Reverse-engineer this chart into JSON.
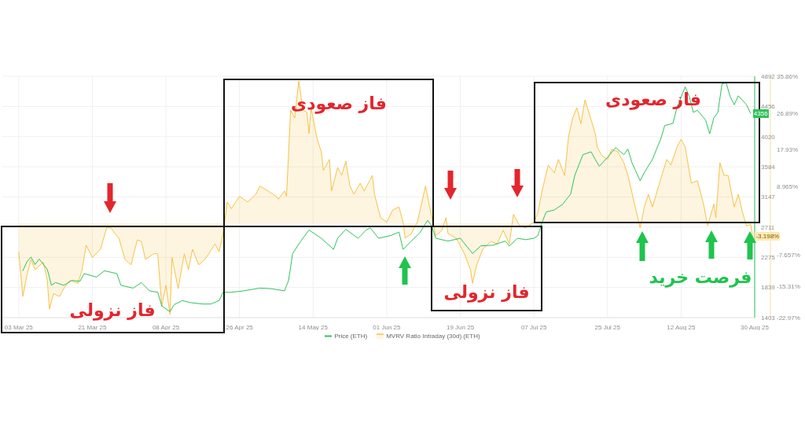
{
  "chart_data": {
    "type": "line",
    "series": [
      {
        "name": "Price (ETH)",
        "color": "#2fc25b",
        "x": [
          "2025-03-04",
          "2025-03-05",
          "2025-03-06",
          "2025-03-07",
          "2025-03-08",
          "2025-03-10",
          "2025-03-11",
          "2025-03-12",
          "2025-03-14",
          "2025-03-16",
          "2025-03-18",
          "2025-03-19",
          "2025-03-22",
          "2025-03-24",
          "2025-03-27",
          "2025-03-28",
          "2025-03-31",
          "2025-04-02",
          "2025-04-04",
          "2025-04-06",
          "2025-04-07",
          "2025-04-09",
          "2025-04-10",
          "2025-04-12",
          "2025-04-14",
          "2025-04-17",
          "2025-04-19",
          "2025-04-21",
          "2025-04-22",
          "2025-04-24",
          "2025-04-27",
          "2025-05-01",
          "2025-05-04",
          "2025-05-07",
          "2025-05-08",
          "2025-05-09",
          "2025-05-11",
          "2025-05-13",
          "2025-05-16",
          "2025-05-19",
          "2025-05-20",
          "2025-05-22",
          "2025-05-25",
          "2025-05-27",
          "2025-05-28",
          "2025-05-30",
          "2025-06-02",
          "2025-06-04",
          "2025-06-05",
          "2025-06-07",
          "2025-06-09",
          "2025-06-11",
          "2025-06-12",
          "2025-06-13",
          "2025-06-16",
          "2025-06-19",
          "2025-06-22",
          "2025-06-24",
          "2025-06-27",
          "2025-06-30",
          "2025-07-01",
          "2025-07-03",
          "2025-07-05",
          "2025-07-07",
          "2025-07-08",
          "2025-07-09",
          "2025-07-10",
          "2025-07-12",
          "2025-07-14",
          "2025-07-16",
          "2025-07-17",
          "2025-07-18",
          "2025-07-19",
          "2025-07-21",
          "2025-07-22",
          "2025-07-23",
          "2025-07-25",
          "2025-07-27",
          "2025-07-29",
          "2025-07-30",
          "2025-07-31",
          "2025-08-02",
          "2025-08-03",
          "2025-08-05",
          "2025-08-06",
          "2025-08-07",
          "2025-08-08",
          "2025-08-10",
          "2025-08-11",
          "2025-08-13",
          "2025-08-14",
          "2025-08-15",
          "2025-08-16",
          "2025-08-18",
          "2025-08-19",
          "2025-08-20",
          "2025-08-21",
          "2025-08-22",
          "2025-08-23",
          "2025-08-24",
          "2025-08-25",
          "2025-08-26",
          "2025-08-28",
          "2025-08-29"
        ],
        "values": [
          2080,
          2210,
          2280,
          2170,
          2250,
          2100,
          1870,
          1910,
          1870,
          1940,
          1930,
          2040,
          1990,
          2080,
          2040,
          1870,
          1830,
          1910,
          1790,
          1770,
          1570,
          1490,
          1590,
          1650,
          1620,
          1600,
          1600,
          1650,
          1770,
          1770,
          1790,
          1830,
          1820,
          1790,
          1940,
          2330,
          2510,
          2670,
          2550,
          2390,
          2550,
          2680,
          2550,
          2670,
          2700,
          2550,
          2590,
          2640,
          2390,
          2510,
          2620,
          2810,
          2730,
          2550,
          2510,
          2550,
          2330,
          2440,
          2450,
          2510,
          2440,
          2550,
          2530,
          2550,
          2590,
          2780,
          2930,
          2960,
          3040,
          3190,
          3460,
          3610,
          3760,
          3800,
          3690,
          3590,
          3720,
          3860,
          3760,
          3840,
          3640,
          3380,
          3500,
          3690,
          3840,
          3980,
          4180,
          4210,
          4440,
          4740,
          4600,
          4370,
          4400,
          4260,
          4060,
          4290,
          4370,
          4780,
          4800,
          4600,
          4480,
          4610,
          4480,
          4356
        ],
        "value_labels": [
          null,
          null,
          null,
          null,
          null,
          null,
          null,
          null,
          null,
          null,
          null,
          null,
          null,
          null,
          null,
          null,
          null,
          null,
          null,
          null,
          null,
          null,
          null,
          null,
          null,
          null,
          null,
          null,
          null,
          null,
          null,
          null,
          null,
          null,
          null,
          null,
          null,
          null,
          null,
          null,
          null,
          null,
          null,
          null,
          null,
          null,
          null,
          null,
          null,
          null,
          null,
          null,
          null,
          null,
          null,
          null,
          null,
          null,
          null,
          null,
          null,
          null,
          null,
          null,
          null,
          null,
          null,
          null,
          null,
          null,
          null,
          null,
          null,
          null,
          null,
          null,
          null,
          null,
          null,
          null,
          null,
          null,
          null,
          null,
          null,
          null,
          null,
          null,
          null,
          null,
          null,
          null,
          null,
          null,
          null,
          null,
          null,
          null,
          null,
          null,
          null,
          null,
          null,
          "4356"
        ]
      },
      {
        "name": "MVRV Ratio Intraday (30d) (ETH)",
        "type": "area",
        "axis": "y2",
        "color": "#f6c244",
        "x": [
          "2025-03-03",
          "2025-03-04",
          "2025-03-05",
          "2025-03-06",
          "2025-03-07",
          "2025-03-09",
          "2025-03-10",
          "2025-03-10T12:00",
          "2025-03-11T12:00",
          "2025-03-13",
          "2025-03-14",
          "2025-03-15T12:00",
          "2025-03-17T12:00",
          "2025-03-18T12:00",
          "2025-03-19T12:00",
          "2025-03-21",
          "2025-03-23",
          "2025-03-24T12:00",
          "2025-03-25T12:00",
          "2025-03-27",
          "2025-03-27T12:00",
          "2025-03-29",
          "2025-03-30T12:00",
          "2025-04-01",
          "2025-04-02",
          "2025-04-03",
          "2025-04-05",
          "2025-04-06",
          "2025-04-06T12:00",
          "2025-04-07",
          "2025-04-08",
          "2025-04-09",
          "2025-04-09T12:00",
          "2025-04-11",
          "2025-04-12T12:00",
          "2025-04-13T12:00",
          "2025-04-14T12:00",
          "2025-04-16",
          "2025-04-17T12:00",
          "2025-04-18T12:00",
          "2025-04-20",
          "2025-04-21",
          "2025-04-22",
          "2025-04-22T12:00",
          "2025-04-23",
          "2025-04-24",
          "2025-04-26",
          "2025-04-28",
          "2025-04-30",
          "2025-05-01",
          "2025-05-03",
          "2025-05-05",
          "2025-05-05T12:00",
          "2025-05-07",
          "2025-05-07T12:00",
          "2025-05-08T12:00",
          "2025-05-09T12:00",
          "2025-05-10T12:00",
          "2025-05-11T12:00",
          "2025-05-12T12:00",
          "2025-05-13",
          "2025-05-13T12:00",
          "2025-05-15",
          "2025-05-16",
          "2025-05-16T12:00",
          "2025-05-18",
          "2025-05-18T12:00",
          "2025-05-20",
          "2025-05-21",
          "2025-05-22",
          "2025-05-23",
          "2025-05-24",
          "2025-05-25T12:00",
          "2025-05-26T12:00",
          "2025-05-28T12:00",
          "2025-05-29",
          "2025-05-30T12:00",
          "2025-06-01",
          "2025-06-02T12:00",
          "2025-06-04",
          "2025-06-05",
          "2025-06-05T12:00",
          "2025-06-07",
          "2025-06-08T12:00",
          "2025-06-09T12:00",
          "2025-06-10T12:00",
          "2025-06-11T12:00",
          "2025-06-13",
          "2025-06-14T12:00",
          "2025-06-15T12:00",
          "2025-06-16",
          "2025-06-18",
          "2025-06-20",
          "2025-06-21T12:00",
          "2025-06-22",
          "2025-06-23",
          "2025-06-24T12:00",
          "2025-06-26T12:00",
          "2025-06-28",
          "2025-06-29T12:00",
          "2025-07-01",
          "2025-07-02",
          "2025-07-03T12:00",
          "2025-07-05",
          "2025-07-07",
          "2025-07-08",
          "2025-07-09",
          "2025-07-10T12:00",
          "2025-07-12",
          "2025-07-13",
          "2025-07-14T12:00",
          "2025-07-15T12:00",
          "2025-07-16T12:00",
          "2025-07-17T12:00",
          "2025-07-18T12:00",
          "2025-07-19T12:00",
          "2025-07-21",
          "2025-07-22",
          "2025-07-22T12:00",
          "2025-07-23T12:00",
          "2025-07-25",
          "2025-07-26",
          "2025-07-27T12:00",
          "2025-07-29",
          "2025-07-30",
          "2025-07-31T12:00",
          "2025-08-02",
          "2025-08-03",
          "2025-08-04",
          "2025-08-05",
          "2025-08-06T12:00",
          "2025-08-08T12:00",
          "2025-08-09T12:00",
          "2025-08-11",
          "2025-08-12",
          "2025-08-13",
          "2025-08-14T12:00",
          "2025-08-16",
          "2025-08-17T12:00",
          "2025-08-18T12:00",
          "2025-08-20",
          "2025-08-20T12:00",
          "2025-08-21T12:00",
          "2025-08-22T12:00",
          "2025-08-23T12:00",
          "2025-08-25",
          "2025-08-26",
          "2025-08-27",
          "2025-08-28",
          "2025-08-29",
          "2025-08-29T12:00"
        ],
        "values": [
          -6.9,
          -17.8,
          -12.7,
          -8.8,
          -11.3,
          -9.4,
          -13.9,
          -20.9,
          -17.1,
          -17.8,
          -15.9,
          -13.9,
          -14.6,
          -11.3,
          -5.3,
          -8.3,
          -6.3,
          -1.1,
          -1.1,
          -3.0,
          -3.6,
          -8.8,
          -10.1,
          -4.0,
          -4.4,
          -8.8,
          -7.4,
          -7.4,
          -13.9,
          -20.2,
          -15.1,
          -22.2,
          -8.3,
          -15.9,
          -7.4,
          -11.3,
          -6.3,
          -10.1,
          -8.8,
          -7.4,
          -5.0,
          -6.9,
          -2.5,
          1.4,
          5.2,
          3.6,
          6.6,
          5.2,
          7.1,
          9.1,
          7.9,
          6.6,
          5.9,
          7.9,
          6.6,
          27.6,
          25.7,
          34.7,
          27.6,
          27.1,
          21.9,
          28.2,
          20.5,
          17.5,
          12.9,
          15.6,
          7.9,
          13.6,
          11.7,
          15.2,
          9.1,
          7.1,
          9.8,
          7.9,
          11.7,
          7.1,
          1.4,
          0.3,
          3.3,
          4.0,
          0.3,
          -3.6,
          -2.5,
          0.3,
          4.7,
          9.1,
          4.0,
          -3.0,
          -1.7,
          1.4,
          -2.5,
          -3.6,
          -7.4,
          -11.3,
          -14.6,
          -10.1,
          -6.3,
          -4.4,
          -5.0,
          -1.7,
          -5.0,
          2.2,
          -0.6,
          -1.1,
          0.3,
          2.7,
          7.9,
          14.2,
          12.3,
          15.6,
          11.7,
          21.3,
          25.7,
          28.2,
          24.3,
          30.1,
          25.2,
          21.9,
          18.6,
          16.7,
          15.6,
          18.0,
          17.5,
          14.8,
          11.7,
          5.2,
          -1.1,
          4.0,
          7.1,
          4.0,
          9.1,
          15.6,
          14.2,
          18.6,
          20.5,
          18.6,
          9.8,
          10.4,
          4.7,
          -0.6,
          4.7,
          1.4,
          14.8,
          11.7,
          11.7,
          4.0,
          7.1,
          2.7,
          -0.6,
          -0.2,
          -3.198
        ],
        "value_labels": [
          null,
          null,
          null,
          null,
          null,
          null,
          null,
          null,
          null,
          null,
          null,
          null,
          null,
          null,
          null,
          null,
          null,
          null,
          null,
          null,
          null,
          null,
          null,
          null,
          null,
          null,
          null,
          null,
          null,
          null,
          null,
          null,
          null,
          null,
          null,
          null,
          null,
          null,
          null,
          null,
          null,
          null,
          null,
          null,
          null,
          null,
          null,
          null,
          null,
          null,
          null,
          null,
          null,
          null,
          null,
          null,
          null,
          null,
          null,
          null,
          null,
          null,
          null,
          null,
          null,
          null,
          null,
          null,
          null,
          null,
          null,
          null,
          null,
          null,
          null,
          null,
          null,
          null,
          null,
          null,
          null,
          null,
          null,
          null,
          null,
          null,
          null,
          null,
          null,
          null,
          null,
          null,
          null,
          null,
          null,
          null,
          null,
          null,
          null,
          null,
          null,
          null,
          null,
          null,
          null,
          null,
          null,
          null,
          null,
          null,
          null,
          null,
          null,
          null,
          null,
          null,
          null,
          null,
          null,
          null,
          null,
          null,
          null,
          null,
          null,
          null,
          null,
          null,
          null,
          null,
          null,
          null,
          null,
          null,
          null,
          null,
          null,
          null,
          null,
          null,
          null,
          null,
          null,
          null,
          null,
          null,
          null,
          null,
          null,
          null,
          "-3.198%"
        ]
      }
    ],
    "xlim": [
      "2025-02-27",
      "2025-08-30"
    ],
    "xticks": [
      {
        "value": "2025-03-03",
        "label": "03 Mar 25"
      },
      {
        "value": "2025-03-21",
        "label": "21 Mar 25"
      },
      {
        "value": "2025-04-08",
        "label": "08 Apr 25"
      },
      {
        "value": "2025-04-26",
        "label": "26 Apr 25"
      },
      {
        "value": "2025-05-14",
        "label": "14 May 25"
      },
      {
        "value": "2025-06-01",
        "label": "01 Jun 25"
      },
      {
        "value": "2025-06-19",
        "label": "19 Jun 25"
      },
      {
        "value": "2025-07-07",
        "label": "07 Jul 25"
      },
      {
        "value": "2025-07-25",
        "label": "25 Jul 25"
      },
      {
        "value": "2025-08-12",
        "label": "12 Aug 25"
      },
      {
        "value": "2025-08-30",
        "label": "30 Aug 25"
      }
    ],
    "ylim": [
      1403,
      4892
    ],
    "yticks": [
      1403,
      1839,
      2275,
      2711,
      3147,
      3584,
      4020,
      4456,
      4892
    ],
    "y2lim": [
      -22.97,
      35.86
    ],
    "y2ticks": [
      {
        "value": -22.97,
        "label": "-22.97%"
      },
      {
        "value": -15.31,
        "label": "-15.31%"
      },
      {
        "value": -7.657,
        "label": "-7.657%"
      },
      {
        "value": 8.965,
        "label": "8.965%"
      },
      {
        "value": 17.93,
        "label": "17.93%"
      },
      {
        "value": 26.89,
        "label": "26.89%"
      },
      {
        "value": 35.86,
        "label": "35.86%"
      }
    ],
    "grid": true,
    "legend": "bottom",
    "annotations": [
      "فاز نزولی",
      "فاز صعودی",
      "فاز نزولی",
      "فاز صعودی",
      "فرصت خرید"
    ]
  }
}
